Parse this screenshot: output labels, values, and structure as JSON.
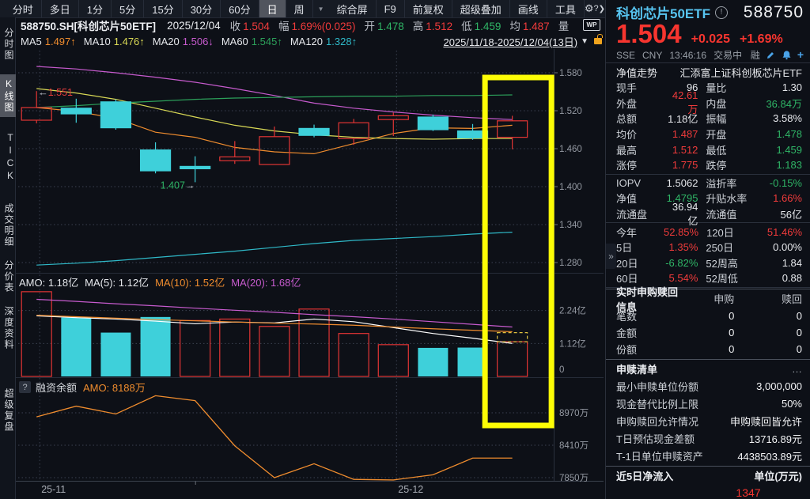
{
  "toolbar": {
    "tabs": [
      {
        "label": "分时",
        "active": false
      },
      {
        "label": "多日",
        "active": false
      },
      {
        "label": "1分",
        "active": false
      },
      {
        "label": "5分",
        "active": false
      },
      {
        "label": "15分",
        "active": false
      },
      {
        "label": "30分",
        "active": false
      },
      {
        "label": "60分",
        "active": false
      },
      {
        "label": "日",
        "active": true
      },
      {
        "label": "周",
        "active": false
      }
    ],
    "tabs_caret": "▼",
    "right_items": [
      "综合屏",
      "F9",
      "前复权",
      "超级叠加",
      "画线",
      "工具"
    ],
    "gear_icon": "⚙",
    "help_icon": "?",
    "chevron_icon": "❯"
  },
  "info_bar": {
    "symbol": "588750.SH[科创芯片50ETF]",
    "date": "2025/12/04",
    "fields": [
      {
        "label": "收",
        "value": "1.504",
        "color": "#f03b3b"
      },
      {
        "label": "幅",
        "value": "1.69%(0.025)",
        "color": "#f03b3b"
      },
      {
        "label": "开",
        "value": "1.478",
        "color": "#2fb566"
      },
      {
        "label": "高",
        "value": "1.512",
        "color": "#f03b3b"
      },
      {
        "label": "低",
        "value": "1.459",
        "color": "#2fb566"
      },
      {
        "label": "均",
        "value": "1.487",
        "color": "#f03b3b"
      },
      {
        "label": "量",
        "value": "",
        "color": "#e6e8ec"
      }
    ],
    "wp_badge": "WP"
  },
  "ma_bar": {
    "items": [
      {
        "label": "MA5",
        "value": "1.497",
        "arrow": "↑",
        "color": "#ef8c2e"
      },
      {
        "label": "MA10",
        "value": "1.476",
        "arrow": "↑",
        "color": "#d8d855"
      },
      {
        "label": "MA20",
        "value": "1.506",
        "arrow": "↓",
        "color": "#c75bce"
      },
      {
        "label": "MA60",
        "value": "1.545",
        "arrow": "↑",
        "color": "#2ca05a"
      },
      {
        "label": "MA120",
        "value": "1.328",
        "arrow": "↑",
        "color": "#2fb9c8"
      }
    ],
    "date_range": "2025/11/18-2025/12/04(13日)",
    "caret": "▼"
  },
  "sidebar": {
    "items": [
      {
        "label": "分时图",
        "active": false
      },
      {
        "label": "K线图",
        "active": true
      },
      {
        "label": "TICK",
        "active": false
      },
      {
        "label": "成交明细",
        "active": false
      },
      {
        "label": "分价表",
        "active": false
      },
      {
        "label": "深度资料",
        "active": false
      },
      {
        "label": "超级复盘",
        "active": false
      }
    ]
  },
  "pane_headers": {
    "amo_parts": [
      {
        "text": "AMO: 1.18亿",
        "color": "#e6e8ec"
      },
      {
        "text": "MA(5): 1.12亿",
        "color": "#e6e8ec"
      },
      {
        "text": "MA(10): 1.52亿",
        "color": "#ef8c2e"
      },
      {
        "text": "MA(20): 1.68亿",
        "color": "#c75bce"
      }
    ],
    "rzye": {
      "help_icon": "?",
      "title": "融资余额",
      "amo": "AMO: 8188万",
      "amo_color": "#ef8c2e"
    }
  },
  "chart_data": [
    {
      "type": "candlestick",
      "title": "588750 科创芯片50ETF 日K 2025/11/18-2025/12/04",
      "dates": [
        "11/18",
        "11/19",
        "11/20",
        "11/21",
        "11/24",
        "11/25",
        "11/26",
        "11/27",
        "11/28",
        "12/01",
        "12/02",
        "12/03",
        "12/04"
      ],
      "ohlc": [
        [
          1.505,
          1.551,
          1.5,
          1.525
        ],
        [
          1.524,
          1.539,
          1.501,
          1.515
        ],
        [
          1.534,
          1.538,
          1.49,
          1.493
        ],
        [
          1.458,
          1.47,
          1.421,
          1.425
        ],
        [
          1.432,
          1.448,
          1.407,
          1.43
        ],
        [
          1.441,
          1.472,
          1.436,
          1.447
        ],
        [
          1.435,
          1.495,
          1.435,
          1.479
        ],
        [
          1.492,
          1.498,
          1.478,
          1.481
        ],
        [
          1.476,
          1.507,
          1.466,
          1.501
        ],
        [
          1.506,
          1.517,
          1.48,
          1.512
        ],
        [
          1.51,
          1.514,
          1.488,
          1.49
        ],
        [
          1.488,
          1.499,
          1.474,
          1.477
        ],
        [
          1.478,
          1.512,
          1.459,
          1.504
        ]
      ],
      "up_color": "#e23535",
      "down_color": "#3ed0da",
      "y_ticks": [
        1.58,
        1.52,
        1.46,
        1.4,
        1.34,
        1.28
      ],
      "ma_series": [
        {
          "name": "MA5",
          "color": "#ef8c2e",
          "values": [
            1.525,
            1.519,
            1.508,
            1.486,
            1.478,
            1.462,
            1.455,
            1.452,
            1.468,
            1.484,
            1.493,
            1.492,
            1.497
          ]
        },
        {
          "name": "MA10",
          "color": "#d8d855",
          "values": [
            1.555,
            1.548,
            1.538,
            1.524,
            1.51,
            1.497,
            1.488,
            1.482,
            1.478,
            1.476,
            1.475,
            1.476,
            1.476
          ]
        },
        {
          "name": "MA20",
          "color": "#c75bce",
          "values": [
            1.59,
            1.586,
            1.58,
            1.573,
            1.565,
            1.555,
            1.544,
            1.532,
            1.524,
            1.518,
            1.513,
            1.509,
            1.506
          ]
        },
        {
          "name": "MA60",
          "color": "#2ca05a",
          "values": [
            1.525,
            1.528,
            1.532,
            1.535,
            1.538,
            1.54,
            1.541,
            1.542,
            1.543,
            1.543,
            1.544,
            1.544,
            1.545
          ]
        },
        {
          "name": "MA120",
          "color": "#2fb9c8",
          "values": [
            1.276,
            1.279,
            1.283,
            1.288,
            1.293,
            1.298,
            1.304,
            1.31,
            1.315,
            1.318,
            1.321,
            1.325,
            1.328
          ]
        }
      ],
      "annotations": [
        {
          "text": "1.551",
          "arrow": "left",
          "color": "#e23b3b",
          "day": 0,
          "price": 1.551
        },
        {
          "text": "1.407",
          "arrow": "right",
          "color": "#2fb566",
          "day": 4,
          "price": 1.407
        }
      ],
      "highlight_box": {
        "day": 12,
        "color": "#fdfd05"
      }
    },
    {
      "type": "bar",
      "title": "成交额 AMO(亿)",
      "values": [
        2.88,
        2.0,
        1.49,
        2.02,
        1.9,
        1.95,
        1.7,
        2.29,
        1.46,
        1.08,
        0.97,
        0.98,
        1.18
      ],
      "directions": [
        "up",
        "down",
        "down",
        "down",
        "up",
        "up",
        "up",
        "up",
        "up",
        "up",
        "down",
        "down",
        "up"
      ],
      "y_ticks": [
        "2.24亿",
        "1.12亿",
        "0"
      ],
      "y_tick_values": [
        2.24,
        1.12,
        0
      ],
      "ma_series": [
        {
          "name": "AMO-MA5",
          "color": "#ffffff",
          "values": [
            2.06,
            2.0,
            1.95,
            1.88,
            1.79,
            1.85,
            1.82,
            1.95,
            1.86,
            1.66,
            1.46,
            1.3,
            1.12
          ]
        },
        {
          "name": "AMO-MA10",
          "color": "#ef8c2e",
          "values": [
            2.08,
            2.03,
            1.98,
            1.93,
            1.89,
            1.85,
            1.81,
            1.78,
            1.74,
            1.68,
            1.62,
            1.57,
            1.52
          ]
        },
        {
          "name": "AMO-MA20",
          "color": "#c75bce",
          "values": [
            2.62,
            2.55,
            2.47,
            2.4,
            2.32,
            2.25,
            2.18,
            2.1,
            2.03,
            1.95,
            1.86,
            1.77,
            1.68
          ]
        }
      ],
      "estimate_box": {
        "day": 12,
        "color": "#dfc23f"
      }
    },
    {
      "type": "line",
      "title": "融资余额(万)",
      "color": "#ef8c2e",
      "values": [
        8900,
        9085,
        8950,
        9265,
        9180,
        8400,
        7850,
        8090,
        7820,
        7810,
        7900,
        8188,
        8188
      ],
      "y_ticks": [
        "8970万",
        "8410万",
        "7850万"
      ],
      "y_tick_values": [
        8970,
        8410,
        7850
      ],
      "x_labels": [
        {
          "text": "25-11",
          "day": 0
        },
        {
          "text": "25-12",
          "day": 9
        }
      ]
    }
  ],
  "stock_header": {
    "name": "科创芯片50ETF",
    "name_color": "#57c4f0",
    "info_icon": "!",
    "code": "588750",
    "price": "1.504",
    "change": "+0.025",
    "change_pct": "+1.69%",
    "price_color": "#f7352f",
    "exchange": "SSE",
    "currency": "CNY",
    "time": "13:46:16",
    "status": "交易中",
    "margin_flag": "融"
  },
  "quote_panel": {
    "nav_row": {
      "left": "净值走势",
      "right": "汇添富上证科创板芯片ETF"
    },
    "rows": [
      {
        "l1": "现手",
        "v1": "96",
        "c1": "w",
        "l2": "量比",
        "v2": "1.30",
        "c2": "w"
      },
      {
        "l1": "外盘",
        "v1": "42.61万",
        "c1": "r",
        "l2": "内盘",
        "v2": "36.84万",
        "c2": "g"
      },
      {
        "l1": "总额",
        "v1": "1.18亿",
        "c1": "w",
        "l2": "振幅",
        "v2": "3.58%",
        "c2": "w"
      },
      {
        "l1": "均价",
        "v1": "1.487",
        "c1": "r",
        "l2": "开盘",
        "v2": "1.478",
        "c2": "g"
      },
      {
        "l1": "最高",
        "v1": "1.512",
        "c1": "r",
        "l2": "最低",
        "v2": "1.459",
        "c2": "g"
      },
      {
        "l1": "涨停",
        "v1": "1.775",
        "c1": "r",
        "l2": "跌停",
        "v2": "1.183",
        "c2": "g",
        "sep_after": true
      },
      {
        "l1": "IOPV",
        "v1": "1.5062",
        "c1": "w",
        "l2": "溢折率",
        "v2": "-0.15%",
        "c2": "g"
      },
      {
        "l1": "净值",
        "v1": "1.4795",
        "c1": "g",
        "l2": "升贴水率",
        "v2": "1.66%",
        "c2": "r"
      },
      {
        "l1": "流通盘",
        "v1": "36.94亿",
        "c1": "w",
        "l2": "流通值",
        "v2": "56亿",
        "c2": "w",
        "sep_after": true
      },
      {
        "l1": "今年",
        "v1": "52.85%",
        "c1": "r",
        "l2": "120日",
        "v2": "51.46%",
        "c2": "r"
      },
      {
        "l1": "5日",
        "v1": "1.35%",
        "c1": "r",
        "l2": "250日",
        "v2": "0.00%",
        "c2": "w"
      },
      {
        "l1": "20日",
        "v1": "-6.82%",
        "c1": "g",
        "l2": "52周高",
        "v2": "1.84",
        "c2": "w"
      },
      {
        "l1": "60日",
        "v1": "5.54%",
        "c1": "r",
        "l2": "52周低",
        "v2": "0.88",
        "c2": "w",
        "sep_after": true
      }
    ],
    "purchase": {
      "title": "实时申购赎回信息",
      "col1": "申购",
      "col2": "赎回",
      "rows": [
        {
          "label": "笔数",
          "v1": "0",
          "v2": "0"
        },
        {
          "label": "金额",
          "v1": "0",
          "v2": "0"
        },
        {
          "label": "份额",
          "v1": "0",
          "v2": "0"
        }
      ]
    },
    "list": {
      "title": "申赎清单",
      "more": "…",
      "rows": [
        {
          "label": "最小申赎单位份额",
          "value": "3,000,000"
        },
        {
          "label": "现金替代比例上限",
          "value": "50%"
        },
        {
          "label": "申购赎回允许情况",
          "value": "申购赎回皆允许"
        },
        {
          "label": "T日预估现金差额",
          "value": "13716.89元"
        },
        {
          "label": "T-1日单位申赎资产",
          "value": "4438503.89元"
        }
      ]
    },
    "flow": {
      "title": "近5日净流入",
      "unit": "单位(万元)",
      "value": "1347",
      "value_color": "#f7352f"
    },
    "expander": "»"
  }
}
